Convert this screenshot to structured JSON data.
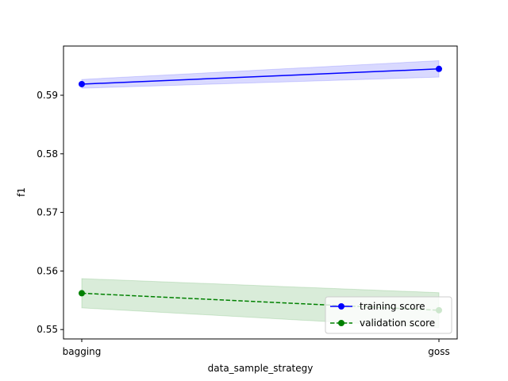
{
  "chart_data": {
    "type": "line",
    "categories": [
      "bagging",
      "goss"
    ],
    "xlabel": "data_sample_strategy",
    "ylabel": "f1",
    "ylim": [
      0.5484,
      0.5984
    ],
    "yticks": [
      0.55,
      0.56,
      0.57,
      0.58,
      0.59
    ],
    "ytick_labels": [
      "0.55",
      "0.56",
      "0.57",
      "0.58",
      "0.59"
    ],
    "grid": false,
    "legend_position": "lower-right",
    "series": [
      {
        "name": "training score",
        "values": [
          0.5919,
          0.5945
        ],
        "band_low": [
          0.5912,
          0.5931
        ],
        "band_high": [
          0.5927,
          0.5959
        ],
        "color": "#0000ff",
        "band_color": "#0000ff",
        "line_style": "solid",
        "marker": "circle"
      },
      {
        "name": "validation score",
        "values": [
          0.5562,
          0.5533
        ],
        "band_low": [
          0.5537,
          0.5503
        ],
        "band_high": [
          0.5587,
          0.5563
        ],
        "color": "#008000",
        "band_color": "#008000",
        "line_style": "dashed",
        "marker": "circle"
      }
    ]
  }
}
